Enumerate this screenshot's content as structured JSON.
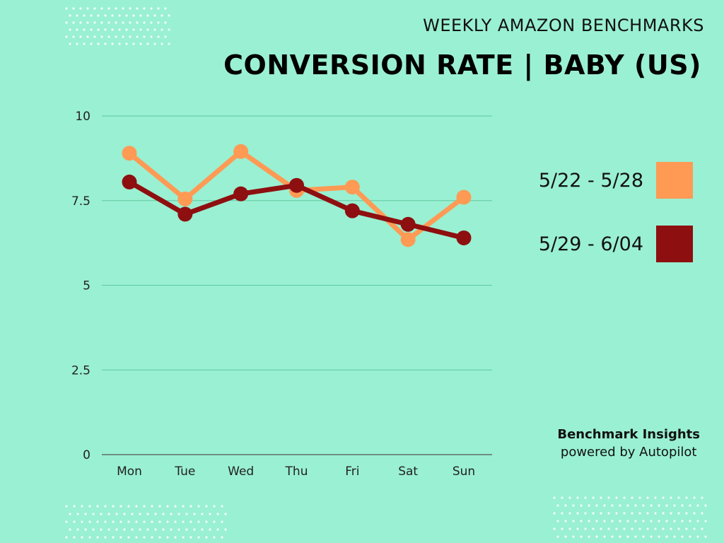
{
  "header": {
    "supertitle": "WEEKLY AMAZON BENCHMARKS",
    "title": "CONVERSION RATE | BABY (US)"
  },
  "chart_data": {
    "type": "line",
    "categories": [
      "Mon",
      "Tue",
      "Wed",
      "Thu",
      "Fri",
      "Sat",
      "Sun"
    ],
    "series": [
      {
        "name": "5/22 - 5/28",
        "color": "#ff9a55",
        "values": [
          8.9,
          7.55,
          8.95,
          7.8,
          7.9,
          6.35,
          7.6
        ]
      },
      {
        "name": "5/29 - 6/04",
        "color": "#8e0f10",
        "values": [
          8.05,
          7.1,
          7.7,
          7.95,
          7.2,
          6.8,
          6.4
        ]
      }
    ],
    "ylim": [
      0,
      10
    ],
    "yticks": [
      0,
      2.5,
      5,
      7.5,
      10
    ],
    "ytick_labels": [
      "0",
      "2.5",
      "5",
      "7.5",
      "10"
    ],
    "grid": true,
    "legend_position": "right"
  },
  "credit": {
    "title": "Benchmark Insights",
    "subtitle": "powered by Autopilot"
  },
  "colors": {
    "background": "#9af0d2",
    "gridline": "#5fc9a3",
    "axis": "#555555"
  }
}
